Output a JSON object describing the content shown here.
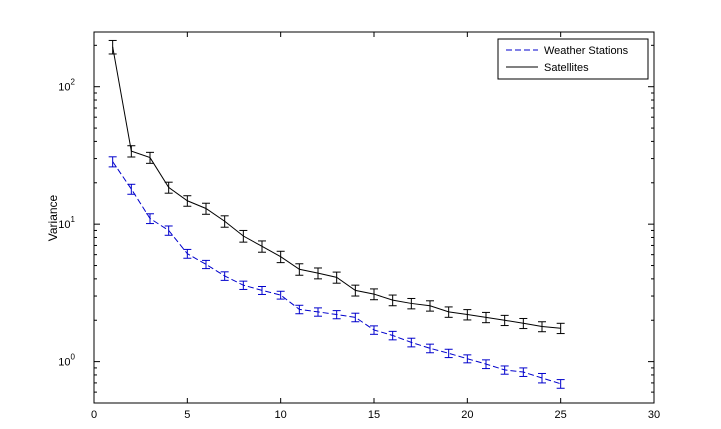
{
  "chart_data": {
    "type": "line",
    "title": "",
    "xlabel": "",
    "ylabel": "Variance",
    "xlim": [
      0,
      30
    ],
    "ylim": [
      0.5,
      250
    ],
    "yscale": "log",
    "grid": false,
    "legend_position": "top-right",
    "x_ticks": [
      0,
      5,
      10,
      15,
      20,
      25,
      30
    ],
    "y_ticks": [
      {
        "value": 1,
        "base": "10",
        "exp": "0"
      },
      {
        "value": 10,
        "base": "10",
        "exp": "1"
      },
      {
        "value": 100,
        "base": "10",
        "exp": "2"
      }
    ],
    "x": [
      1,
      2,
      3,
      4,
      5,
      6,
      7,
      8,
      9,
      10,
      11,
      12,
      13,
      14,
      15,
      16,
      17,
      18,
      19,
      20,
      21,
      22,
      23,
      24,
      25
    ],
    "series": [
      {
        "name": "Weather Stations",
        "color": "#0000cc",
        "line_style": "dashed",
        "values": [
          28.5,
          18,
          11,
          9,
          6.1,
          5.1,
          4.2,
          3.6,
          3.3,
          3.05,
          2.4,
          2.3,
          2.2,
          2.1,
          1.7,
          1.55,
          1.38,
          1.25,
          1.15,
          1.05,
          0.96,
          0.87,
          0.84,
          0.76,
          0.69
        ],
        "errors": [
          2.4,
          1.5,
          0.9,
          0.7,
          0.45,
          0.35,
          0.3,
          0.25,
          0.22,
          0.2,
          0.17,
          0.16,
          0.15,
          0.15,
          0.12,
          0.11,
          0.1,
          0.09,
          0.08,
          0.07,
          0.07,
          0.06,
          0.06,
          0.06,
          0.05
        ]
      },
      {
        "name": "Satellites",
        "color": "#000000",
        "line_style": "solid",
        "values": [
          195,
          34,
          30.5,
          18.5,
          14.8,
          13,
          10.5,
          8.2,
          6.9,
          5.8,
          4.7,
          4.4,
          4.1,
          3.3,
          3.1,
          2.8,
          2.65,
          2.55,
          2.3,
          2.2,
          2.1,
          2.0,
          1.9,
          1.8,
          1.75
        ],
        "errors": [
          22,
          3.2,
          2.8,
          1.7,
          1.3,
          1.2,
          1.0,
          0.8,
          0.65,
          0.55,
          0.45,
          0.4,
          0.38,
          0.3,
          0.28,
          0.25,
          0.23,
          0.22,
          0.2,
          0.19,
          0.18,
          0.17,
          0.16,
          0.15,
          0.15
        ]
      }
    ]
  }
}
